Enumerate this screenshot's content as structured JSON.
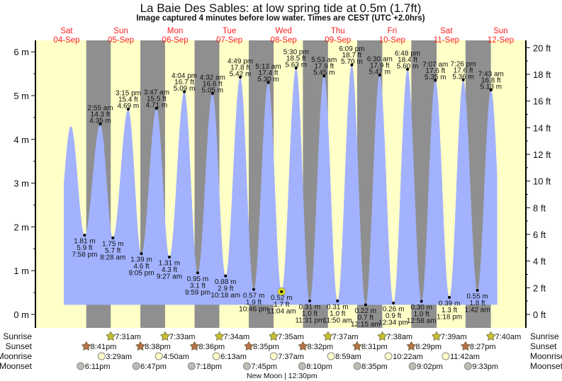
{
  "title": "La Baie Des Sables: at low  spring tide at 0.5m (1.7ft)",
  "subtitle": "Image captured 4 minutes before low water. Times are CEST (UTC +2.0hrs)",
  "colors": {
    "day": "#ffffc8",
    "night": "#8f8f8f",
    "tide": "#a2b2ff",
    "day_label": "#ff2020",
    "sunrise": "#c8c032",
    "sunset": "#b87048",
    "moonrise": "#ffffc8",
    "moonset": "#bdbdb5",
    "now": "#e0e020"
  },
  "chart_data": {
    "type": "area",
    "title": "La Baie Des Sables tide heights",
    "days": [
      {
        "name": "Sat",
        "date": "04-Sep"
      },
      {
        "name": "Sun",
        "date": "05-Sep"
      },
      {
        "name": "Mon",
        "date": "06-Sep"
      },
      {
        "name": "Tue",
        "date": "07-Sep"
      },
      {
        "name": "Wed",
        "date": "08-Sep"
      },
      {
        "name": "Thu",
        "date": "09-Sep"
      },
      {
        "name": "Fri",
        "date": "10-Sep"
      },
      {
        "name": "Sat",
        "date": "11-Sep"
      },
      {
        "name": "Sun",
        "date": "12-Sep"
      }
    ],
    "y_left": {
      "unit": "m",
      "ylim": [
        -0.3,
        6.3
      ],
      "ticks": [
        "0 m",
        "1 m",
        "2 m",
        "3 m",
        "4 m",
        "5 m",
        "6 m"
      ]
    },
    "y_right": {
      "unit": "ft",
      "ticks": [
        "0 ft",
        "2 ft",
        "4 ft",
        "6 ft",
        "8 ft",
        "10 ft",
        "12 ft",
        "14 ft",
        "16 ft",
        "18 ft",
        "20 ft"
      ]
    },
    "unlabeled_start_high_m": 4.3,
    "extremes": [
      {
        "type": "low",
        "day": 0,
        "time": "7:58 pm",
        "m": "1.81 m",
        "ft": "5.9 ft",
        "h": 1.81
      },
      {
        "type": "high",
        "day": 1,
        "time": "2:55 am",
        "m": "4.35 m",
        "ft": "14.3 ft",
        "h": 4.35
      },
      {
        "type": "low",
        "day": 1,
        "time": "8:28 am",
        "m": "1.75 m",
        "ft": "5.7 ft",
        "h": 1.75
      },
      {
        "type": "high",
        "day": 1,
        "time": "3:15 pm",
        "m": "4.69 m",
        "ft": "15.4 ft",
        "h": 4.69
      },
      {
        "type": "low",
        "day": 1,
        "time": "9:05 pm",
        "m": "1.39 m",
        "ft": "4.6 ft",
        "h": 1.39
      },
      {
        "type": "high",
        "day": 2,
        "time": "3:47 am",
        "m": "4.71 m",
        "ft": "15.5 ft",
        "h": 4.71
      },
      {
        "type": "low",
        "day": 2,
        "time": "9:27 am",
        "m": "1.31 m",
        "ft": "4.3 ft",
        "h": 1.31
      },
      {
        "type": "high",
        "day": 2,
        "time": "4:04 pm",
        "m": "5.09 m",
        "ft": "16.7 ft",
        "h": 5.09
      },
      {
        "type": "low",
        "day": 2,
        "time": "9:59 pm",
        "m": "0.95 m",
        "ft": "3.1 ft",
        "h": 0.95
      },
      {
        "type": "high",
        "day": 3,
        "time": "4:32 am",
        "m": "5.05 m",
        "ft": "16.6 ft",
        "h": 5.05
      },
      {
        "type": "low",
        "day": 3,
        "time": "10:18 am",
        "m": "0.88 m",
        "ft": "2.9 ft",
        "h": 0.88
      },
      {
        "type": "high",
        "day": 3,
        "time": "4:49 pm",
        "m": "5.42 m",
        "ft": "17.8 ft",
        "h": 5.42
      },
      {
        "type": "low",
        "day": 3,
        "time": "10:46 pm",
        "m": "0.57 m",
        "ft": "1.9 ft",
        "h": 0.57
      },
      {
        "type": "high",
        "day": 4,
        "time": "5:13 am",
        "m": "5.30 m",
        "ft": "17.4 ft",
        "h": 5.3
      },
      {
        "type": "low",
        "day": 4,
        "time": "11:04 am",
        "m": "0.52 m",
        "ft": "1.7 ft",
        "h": 0.52,
        "current": true
      },
      {
        "type": "high",
        "day": 4,
        "time": "5:30 pm",
        "m": "5.63 m",
        "ft": "18.5 ft",
        "h": 5.63
      },
      {
        "type": "low",
        "day": 4,
        "time": "11:31 pm",
        "m": "0.31 m",
        "ft": "1.0 ft",
        "h": 0.31
      },
      {
        "type": "high",
        "day": 5,
        "time": "5:53 am",
        "m": "5.45 m",
        "ft": "17.9 ft",
        "h": 5.45
      },
      {
        "type": "low",
        "day": 5,
        "time": "11:50 am",
        "m": "0.31 m",
        "ft": "1.0 ft",
        "h": 0.31
      },
      {
        "type": "high",
        "day": 5,
        "time": "6:09 pm",
        "m": "5.70 m",
        "ft": "18.7 ft",
        "h": 5.7
      },
      {
        "type": "low",
        "day": 6,
        "time": "12:15 am",
        "m": "0.22 m",
        "ft": "0.7 ft",
        "h": 0.22
      },
      {
        "type": "high",
        "day": 6,
        "time": "6:30 am",
        "m": "5.47 m",
        "ft": "17.9 ft",
        "h": 5.47
      },
      {
        "type": "low",
        "day": 6,
        "time": "12:34 pm",
        "m": "0.26 m",
        "ft": "0.9 ft",
        "h": 0.26
      },
      {
        "type": "high",
        "day": 6,
        "time": "6:48 pm",
        "m": "5.60 m",
        "ft": "18.4 ft",
        "h": 5.6
      },
      {
        "type": "low",
        "day": 7,
        "time": "12:58 am",
        "m": "0.30 m",
        "ft": "1.0 ft",
        "h": 0.3
      },
      {
        "type": "high",
        "day": 7,
        "time": "7:07 am",
        "m": "5.35 m",
        "ft": "17.6 ft",
        "h": 5.35
      },
      {
        "type": "low",
        "day": 7,
        "time": "1:18 pm",
        "m": "0.39 m",
        "ft": "1.3 ft",
        "h": 0.39
      },
      {
        "type": "high",
        "day": 7,
        "time": "7:26 pm",
        "m": "5.36 m",
        "ft": "17.6 ft",
        "h": 5.36
      },
      {
        "type": "low",
        "day": 8,
        "time": "1:42 am",
        "m": "0.55 m",
        "ft": "1.8 ft",
        "h": 0.55
      },
      {
        "type": "high",
        "day": 8,
        "time": "7:43 am",
        "m": "5.13 m",
        "ft": "16.8 ft",
        "h": 5.13
      }
    ]
  },
  "astro": {
    "labels": {
      "sunrise": "Sunrise",
      "sunset": "Sunset",
      "moonrise": "Moonrise",
      "moonset": "Moonset"
    },
    "sunrise": [
      {
        "day": 1,
        "time": "7:31am"
      },
      {
        "day": 2,
        "time": "7:33am"
      },
      {
        "day": 3,
        "time": "7:34am"
      },
      {
        "day": 4,
        "time": "7:35am"
      },
      {
        "day": 5,
        "time": "7:37am"
      },
      {
        "day": 6,
        "time": "7:38am"
      },
      {
        "day": 7,
        "time": "7:39am"
      },
      {
        "day": 8,
        "time": "7:40am"
      }
    ],
    "sunset": [
      {
        "day": 0,
        "time": "8:41pm"
      },
      {
        "day": 1,
        "time": "8:38pm"
      },
      {
        "day": 2,
        "time": "8:36pm"
      },
      {
        "day": 3,
        "time": "8:35pm"
      },
      {
        "day": 4,
        "time": "8:32pm"
      },
      {
        "day": 5,
        "time": "8:31pm"
      },
      {
        "day": 6,
        "time": "8:29pm"
      },
      {
        "day": 7,
        "time": "8:27pm"
      }
    ],
    "moonrise": [
      {
        "day": 1,
        "time": "3:29am"
      },
      {
        "day": 2,
        "time": "4:50am"
      },
      {
        "day": 3,
        "time": "6:13am"
      },
      {
        "day": 4,
        "time": "7:37am"
      },
      {
        "day": 5,
        "time": "8:59am"
      },
      {
        "day": 6,
        "time": "10:22am"
      },
      {
        "day": 7,
        "time": "11:42am"
      }
    ],
    "moonset": [
      {
        "day": 0,
        "time": "6:11pm"
      },
      {
        "day": 1,
        "time": "6:47pm"
      },
      {
        "day": 2,
        "time": "7:18pm"
      },
      {
        "day": 3,
        "time": "7:45pm"
      },
      {
        "day": 4,
        "time": "8:10pm"
      },
      {
        "day": 5,
        "time": "8:35pm"
      },
      {
        "day": 6,
        "time": "9:02pm"
      },
      {
        "day": 7,
        "time": "9:33pm"
      }
    ],
    "moon_phase": {
      "day": 4,
      "time": "12:30pm",
      "label": "New Moon | 12:30pm"
    }
  }
}
